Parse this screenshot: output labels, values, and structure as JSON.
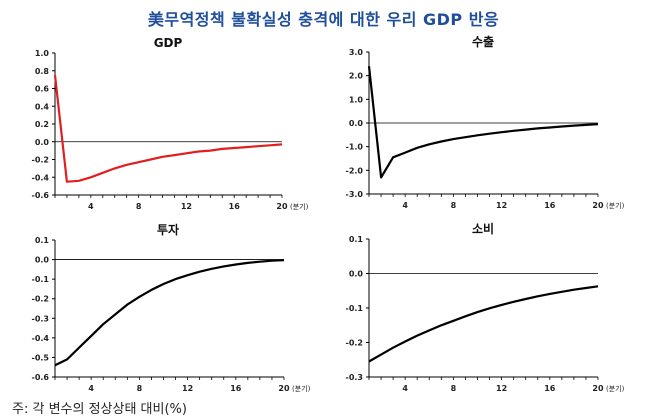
{
  "title": "美무역정책 불확실성 충격에 대한 우리 GDP 반응",
  "footnote": "주: 각 변수의 정상상태 대비(%)",
  "x_unit": "(분기)",
  "chart_data": [
    {
      "type": "line",
      "title": "GDP",
      "color": "#e02020",
      "x_ticks": [
        4,
        8,
        12,
        16,
        20
      ],
      "y_ticks": [
        "1.0",
        "0.8",
        "0.6",
        "0.4",
        "0.2",
        "0.0",
        "-0.2",
        "-0.4",
        "-0.6"
      ],
      "xlim": [
        1,
        20
      ],
      "ylim": [
        -0.6,
        1.0
      ],
      "series": [
        {
          "x": [
            1,
            2,
            3,
            4,
            5,
            6,
            7,
            8,
            9,
            10,
            11,
            12,
            13,
            14,
            15,
            16,
            17,
            18,
            19,
            20
          ],
          "values": [
            0.75,
            -0.45,
            -0.44,
            -0.4,
            -0.35,
            -0.3,
            -0.26,
            -0.23,
            -0.2,
            -0.17,
            -0.15,
            -0.13,
            -0.11,
            -0.1,
            -0.08,
            -0.07,
            -0.06,
            -0.05,
            -0.04,
            -0.03
          ]
        }
      ]
    },
    {
      "type": "line",
      "title": "수출",
      "color": "#000000",
      "x_ticks": [
        4,
        8,
        12,
        16,
        20
      ],
      "y_ticks": [
        "3.0",
        "2.0",
        "1.0",
        "0.0",
        "-1.0",
        "-2.0",
        "-3.0"
      ],
      "xlim": [
        1,
        20
      ],
      "ylim": [
        -3.0,
        3.0
      ],
      "series": [
        {
          "x": [
            1,
            2,
            3,
            4,
            5,
            6,
            7,
            8,
            9,
            10,
            11,
            12,
            13,
            14,
            15,
            16,
            17,
            18,
            19,
            20
          ],
          "values": [
            2.4,
            -2.3,
            -1.45,
            -1.25,
            -1.05,
            -0.9,
            -0.78,
            -0.68,
            -0.6,
            -0.52,
            -0.45,
            -0.39,
            -0.33,
            -0.28,
            -0.23,
            -0.19,
            -0.15,
            -0.11,
            -0.08,
            -0.05
          ]
        }
      ]
    },
    {
      "type": "line",
      "title": "투자",
      "color": "#000000",
      "x_ticks": [
        4,
        8,
        12,
        16,
        20
      ],
      "y_ticks": [
        "0.1",
        "0.0",
        "-0.1",
        "-0.2",
        "-0.3",
        "-0.4",
        "-0.5",
        "-0.6"
      ],
      "xlim": [
        1,
        20
      ],
      "ylim": [
        -0.6,
        0.1
      ],
      "series": [
        {
          "x": [
            1,
            2,
            3,
            4,
            5,
            6,
            7,
            8,
            9,
            10,
            11,
            12,
            13,
            14,
            15,
            16,
            17,
            18,
            19,
            20
          ],
          "values": [
            -0.54,
            -0.51,
            -0.45,
            -0.39,
            -0.33,
            -0.28,
            -0.23,
            -0.19,
            -0.155,
            -0.125,
            -0.1,
            -0.08,
            -0.062,
            -0.047,
            -0.035,
            -0.025,
            -0.017,
            -0.011,
            -0.006,
            -0.003
          ]
        }
      ]
    },
    {
      "type": "line",
      "title": "소비",
      "color": "#000000",
      "x_ticks": [
        4,
        8,
        12,
        16,
        20
      ],
      "y_ticks": [
        "0.1",
        "0.0",
        "-0.1",
        "-0.2",
        "-0.3"
      ],
      "xlim": [
        1,
        20
      ],
      "ylim": [
        -0.3,
        0.1
      ],
      "series": [
        {
          "x": [
            1,
            2,
            3,
            4,
            5,
            6,
            7,
            8,
            9,
            10,
            11,
            12,
            13,
            14,
            15,
            16,
            17,
            18,
            19,
            20
          ],
          "values": [
            -0.255,
            -0.235,
            -0.215,
            -0.197,
            -0.18,
            -0.165,
            -0.15,
            -0.137,
            -0.124,
            -0.112,
            -0.101,
            -0.091,
            -0.082,
            -0.074,
            -0.066,
            -0.059,
            -0.053,
            -0.047,
            -0.042,
            -0.037
          ]
        }
      ]
    }
  ]
}
